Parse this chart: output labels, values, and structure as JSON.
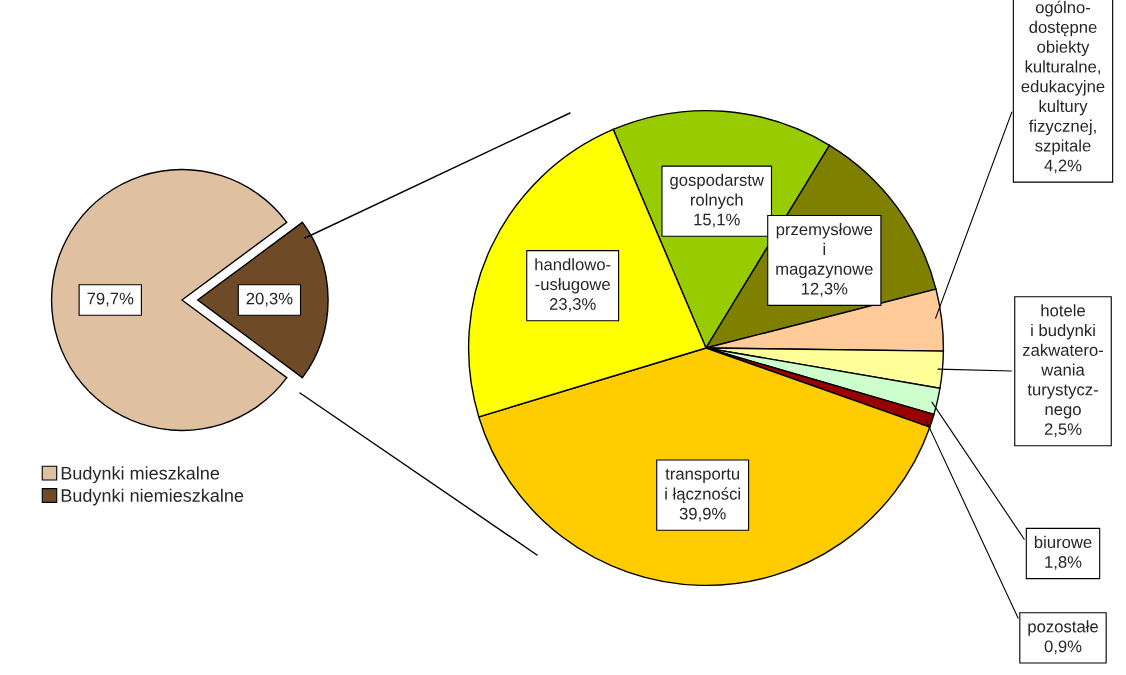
{
  "chart_data": [
    {
      "type": "pie",
      "categories": [
        "Budynki mieszkalne",
        "Budynki niemieszkalne"
      ],
      "values": [
        79.7,
        20.3
      ],
      "colors": [
        "#dfc1a2",
        "#6e4b26"
      ],
      "value_labels": [
        "79,7%",
        "20,3%"
      ],
      "legend": "bottom left"
    },
    {
      "type": "pie",
      "categories": [
        "gospodarstw\nrolnych",
        "przemysłowe\ni\nmagazynowe",
        "ogólno-\ndostępne\nobiekty\nkulturalne,\nedukacyjne\nkultury\nfizycznej,\nszpitale",
        "hotele\ni budynki\nzakwatero-\nwania\nturystycz-\nnego",
        "biurowe",
        "pozostałe",
        "transportu\ni łączności",
        "handlowo-\n-usługowe"
      ],
      "values": [
        15.1,
        12.3,
        4.2,
        2.5,
        1.8,
        0.9,
        39.9,
        23.3
      ],
      "colors": [
        "#99cc00",
        "#808000",
        "#ffcc99",
        "#ffff99",
        "#ccffcc",
        "#990000",
        "#ffcc00",
        "#ffff00"
      ],
      "value_labels": [
        "15,1%",
        "12,3%",
        "4,2%",
        "2,5%",
        "1,8%",
        "0,9%",
        "39,9%",
        "23,3%"
      ]
    }
  ]
}
